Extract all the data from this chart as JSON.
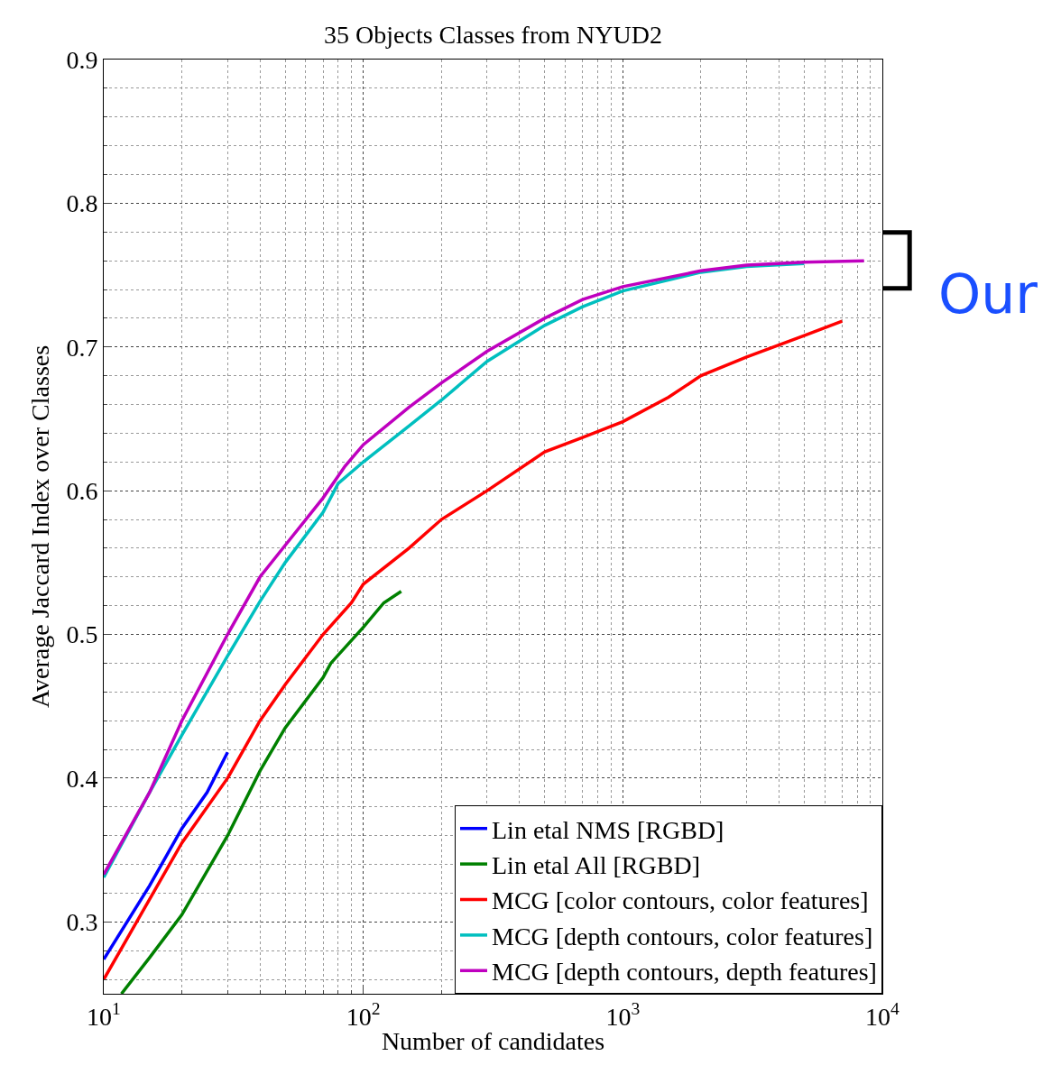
{
  "chart_data": {
    "type": "line",
    "title": "35 Objects Classes from NYUD2",
    "xlabel": "Number of candidates",
    "ylabel": "Average Jaccard Index over Classes",
    "log": "x",
    "grid": true,
    "legend": "bottom right",
    "marker": "none",
    "line_style": "solid",
    "xlim": [
      10,
      10000
    ],
    "xticks": [
      {
        "value": 10,
        "label": "10$^{1}$"
      },
      {
        "value": 100,
        "label": "10$^{2}$"
      },
      {
        "value": 1000,
        "label": "10$^{3}$"
      },
      {
        "value": 10000,
        "label": "10$^{4}$"
      }
    ],
    "ylim": [
      0.25,
      0.9
    ],
    "yticks": [
      0.3,
      0.4,
      0.5,
      0.6,
      0.7,
      0.8,
      0.9
    ],
    "annotations": [
      "Our"
    ],
    "series": [
      {
        "name": "Lin etal NMS [RGBD]",
        "color": "#0000ff",
        "x": [
          10,
          15,
          20,
          25,
          30
        ],
        "values": [
          0.274,
          0.325,
          0.365,
          0.39,
          0.418
        ]
      },
      {
        "name": "Lin etal All [RGBD]",
        "color": "#008000",
        "x": [
          11.7,
          15,
          20,
          30,
          40,
          50,
          70,
          75,
          100,
          120,
          140
        ],
        "values": [
          0.25,
          0.275,
          0.305,
          0.36,
          0.405,
          0.435,
          0.47,
          0.48,
          0.505,
          0.522,
          0.53
        ]
      },
      {
        "name": "MCG [color contours, color features]",
        "color": "#ff0000",
        "x": [
          10,
          20,
          30,
          40,
          50,
          70,
          90,
          100,
          150,
          200,
          300,
          500,
          700,
          1000,
          1500,
          2000,
          3000,
          5000,
          7000
        ],
        "values": [
          0.26,
          0.355,
          0.4,
          0.44,
          0.465,
          0.5,
          0.522,
          0.535,
          0.56,
          0.58,
          0.6,
          0.627,
          0.637,
          0.648,
          0.665,
          0.68,
          0.693,
          0.708,
          0.718
        ]
      },
      {
        "name": "MCG [depth contours, color features]",
        "color": "#00bfbf",
        "x": [
          10,
          15,
          20,
          30,
          40,
          50,
          70,
          80,
          100,
          150,
          200,
          300,
          500,
          700,
          1000,
          2000,
          3000,
          5000
        ],
        "values": [
          0.331,
          0.39,
          0.43,
          0.485,
          0.523,
          0.55,
          0.585,
          0.605,
          0.62,
          0.645,
          0.663,
          0.69,
          0.715,
          0.728,
          0.739,
          0.752,
          0.756,
          0.758
        ]
      },
      {
        "name": "MCG [depth contours, depth features]",
        "color": "#bf00bf",
        "x": [
          10,
          15,
          20,
          30,
          40,
          50,
          70,
          85,
          100,
          150,
          200,
          300,
          500,
          700,
          1000,
          2000,
          3000,
          5000,
          8500
        ],
        "values": [
          0.333,
          0.39,
          0.44,
          0.5,
          0.54,
          0.562,
          0.595,
          0.617,
          0.632,
          0.658,
          0.675,
          0.697,
          0.72,
          0.733,
          0.742,
          0.753,
          0.757,
          0.759,
          0.76
        ]
      }
    ]
  }
}
